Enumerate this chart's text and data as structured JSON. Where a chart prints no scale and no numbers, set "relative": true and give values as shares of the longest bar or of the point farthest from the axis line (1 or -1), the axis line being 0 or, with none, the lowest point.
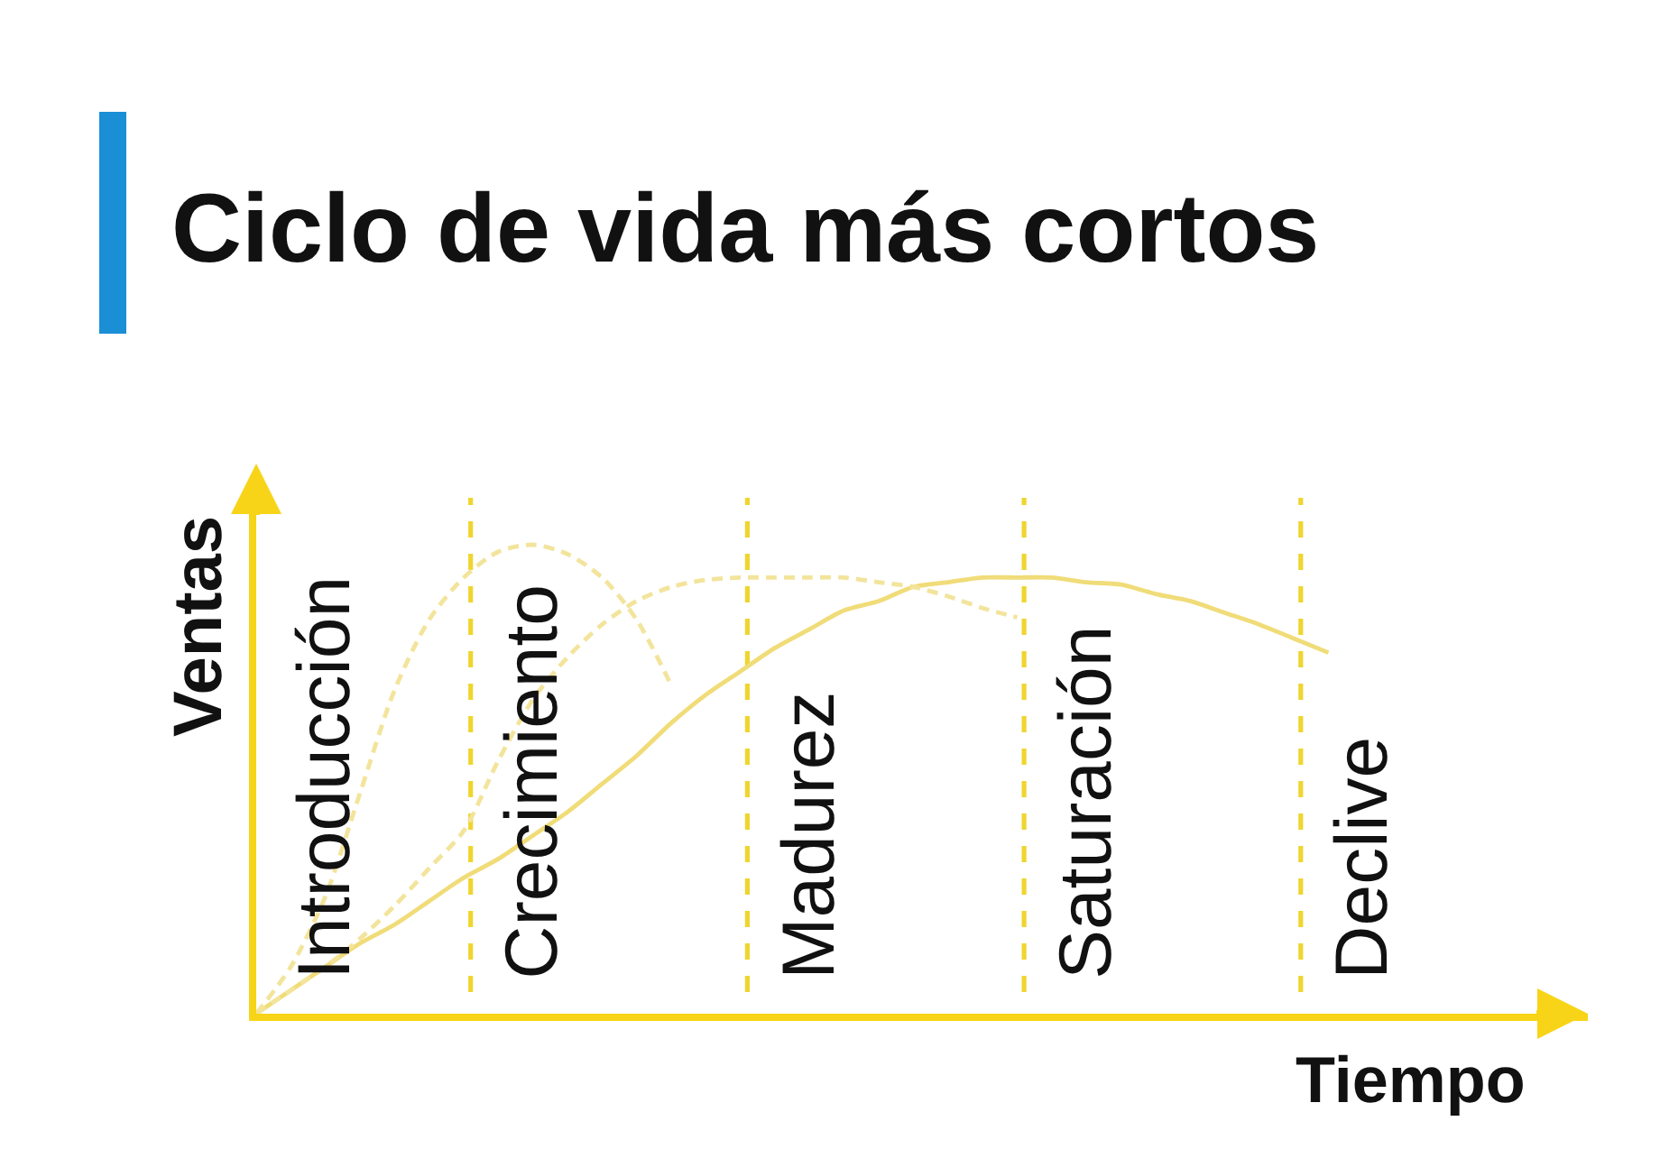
{
  "chart_data": {
    "type": "line",
    "title": "Ciclo de vida más cortos",
    "xlabel": "Tiempo",
    "ylabel": "Ventas",
    "relative": true,
    "tick_labels": "x",
    "categories": [
      null,
      null,
      "Introducción",
      null,
      null,
      null,
      null,
      null,
      "Crecimiento",
      null,
      null,
      null,
      null,
      null,
      null,
      null,
      "Madurez",
      null,
      null,
      null,
      null,
      null,
      null,
      null,
      "Saturación",
      null,
      null,
      null,
      null,
      null,
      null,
      null,
      "Declive",
      null,
      null,
      null,
      null,
      null,
      null
    ],
    "series": [
      {
        "color": "#f0dc78",
        "line_style": "solid",
        "values": [
          0,
          0.05,
          0.1,
          0.15,
          0.19,
          0.24,
          0.29,
          0.33,
          0.38,
          0.43,
          0.49,
          0.55,
          0.62,
          0.68,
          0.73,
          0.78,
          0.82,
          0.86,
          0.88,
          0.91,
          0.92,
          0.93,
          0.93,
          0.93,
          0.92,
          0.915,
          0.895,
          0.88,
          0.855,
          0.83,
          0.8,
          0.77,
          null,
          null,
          null,
          null,
          null,
          null,
          null
        ]
      },
      {
        "color": "#f3e49c",
        "line_style": "dashed",
        "values": [
          0,
          0.05,
          0.1,
          0.16,
          0.23,
          0.31,
          0.39,
          0.54,
          0.67,
          0.76,
          0.83,
          0.88,
          0.91,
          0.925,
          0.93,
          0.93,
          0.93,
          0.93,
          0.92,
          0.91,
          0.89,
          0.865,
          0.845,
          null,
          null,
          null,
          null,
          null,
          null,
          null,
          null,
          null,
          null,
          null,
          null,
          null,
          null,
          null,
          null
        ]
      },
      {
        "color": "#f3e49c",
        "line_style": "dashed",
        "values": [
          0,
          0.1,
          0.25,
          0.47,
          0.69,
          0.84,
          0.93,
          0.985,
          1,
          0.98,
          0.93,
          0.84,
          0.7,
          null,
          null,
          null,
          null,
          null,
          null,
          null,
          null,
          null,
          null,
          null,
          null,
          null,
          null,
          null,
          null,
          null,
          null,
          null,
          null,
          null,
          null,
          null,
          null,
          null,
          null
        ]
      }
    ]
  }
}
